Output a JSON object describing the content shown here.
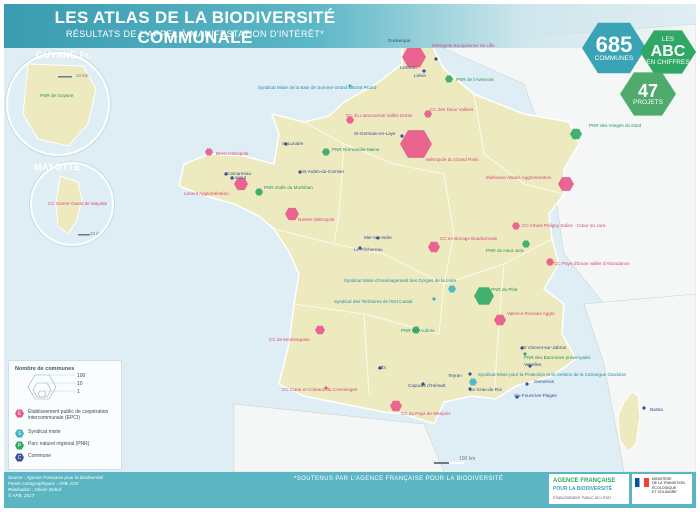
{
  "header": {
    "title": "LES ATLAS DE LA BIODIVERSITÉ COMMUNALE",
    "subtitle": "RÉSULTATS DE L'APPEL À MANIFESTATION D'INTÉRÊT*"
  },
  "stats": {
    "communes_count": "685",
    "communes_label": "COMMUNES",
    "abc_small": "LES",
    "abc_big": "ABC",
    "abc_sub": "EN CHIFFRES",
    "projects_count": "47",
    "projects_label": "PROJETS"
  },
  "insets": {
    "guyane_title": "GUYANE Fr.",
    "guyane_scale": "10 km",
    "guyane_place": "PNR de Guyane",
    "mayotte_title": "MAYOTTE",
    "mayotte_scale": "10 km",
    "mayotte_place": "CC Centre Ouest de Mayotte"
  },
  "places": [
    {
      "id": "p01",
      "name": "Métropole Européenne de Lille",
      "cat": "epci"
    },
    {
      "id": "p02",
      "name": "Dunkerque",
      "cat": "commune"
    },
    {
      "id": "p03",
      "name": "Lestrem",
      "cat": "commune"
    },
    {
      "id": "p04",
      "name": "Liévin",
      "cat": "commune"
    },
    {
      "id": "p05",
      "name": "PNR de l'Avesnois",
      "cat": "pnr"
    },
    {
      "id": "p06",
      "name": "Syndicat Mixte de la Baie de Somme Grand Littoral Picard",
      "cat": "syndicat"
    },
    {
      "id": "p07",
      "name": "CC du Liancourtois Vallée Dorée",
      "cat": "epci"
    },
    {
      "id": "p08",
      "name": "CC des Deux Vallées",
      "cat": "epci"
    },
    {
      "id": "p09",
      "name": "PNR des Vosges du Nord",
      "cat": "pnr"
    },
    {
      "id": "p10",
      "name": "St-Germain-en-Laye",
      "cat": "commune"
    },
    {
      "id": "p11",
      "name": "Métropole du Grand Paris",
      "cat": "epci"
    },
    {
      "id": "p12",
      "name": "St-Lunaire",
      "cat": "commune"
    },
    {
      "id": "p13",
      "name": "PNR Normandie-Maine",
      "cat": "pnr"
    },
    {
      "id": "p14",
      "name": "Brest métropole",
      "cat": "epci"
    },
    {
      "id": "p15",
      "name": "Concarneau",
      "cat": "commune"
    },
    {
      "id": "p16",
      "name": "St-Aubin-du-Cormier",
      "cat": "commune"
    },
    {
      "id": "p17",
      "name": "Lorient Agglomération",
      "cat": "epci"
    },
    {
      "id": "p18",
      "name": "PNR Golfe du Morbihan",
      "cat": "pnr"
    },
    {
      "id": "p19",
      "name": "Mulhouse Alsace Agglomération",
      "cat": "epci"
    },
    {
      "id": "p20",
      "name": "Nantes Métropole",
      "cat": "epci"
    },
    {
      "id": "p21",
      "name": "Mer-sur-Indre",
      "cat": "commune"
    },
    {
      "id": "p22",
      "name": "Le Pêchereau",
      "cat": "commune"
    },
    {
      "id": "p23",
      "name": "CC en Bocage Bourbonnais",
      "cat": "epci"
    },
    {
      "id": "p24",
      "name": "CC Arbois Poligny Salins - Cœur du Jura",
      "cat": "epci"
    },
    {
      "id": "p25",
      "name": "PNR du Haut-Jura",
      "cat": "pnr"
    },
    {
      "id": "p26",
      "name": "CC Pays d'Évian vallée d'Abondance",
      "cat": "epci"
    },
    {
      "id": "p27",
      "name": "Syndicat Mixte d'Aménagement des Gorges de la Loire",
      "cat": "syndicat"
    },
    {
      "id": "p28",
      "name": "Syndicat des Territoires de l'Est Cantal",
      "cat": "syndicat"
    },
    {
      "id": "p29",
      "name": "PNR du Pilat",
      "cat": "pnr"
    },
    {
      "id": "p30",
      "name": "Valence Romans Agglo",
      "cat": "epci"
    },
    {
      "id": "p31",
      "name": "PNR de l'Aubrac",
      "cat": "pnr"
    },
    {
      "id": "p32",
      "name": "CC de Montesquieu",
      "cat": "epci"
    },
    {
      "id": "p33",
      "name": "St Vincent-sur-Jabron",
      "cat": "commune"
    },
    {
      "id": "p34",
      "name": "PNR des Baronnies provençales",
      "cat": "pnr"
    },
    {
      "id": "p35",
      "name": "Venelles",
      "cat": "commune"
    },
    {
      "id": "p36",
      "name": "Albi",
      "cat": "commune"
    },
    {
      "id": "p37",
      "name": "Teyran",
      "cat": "commune"
    },
    {
      "id": "p38",
      "name": "Syndicat Mixte pour la Protection et la Gestion de la Camargue Gardoise",
      "cat": "syndicat"
    },
    {
      "id": "p39",
      "name": "Capoulis d'Hérault",
      "cat": "commune"
    },
    {
      "id": "p40",
      "name": "Le Grau-du-Roi",
      "cat": "commune"
    },
    {
      "id": "p41",
      "name": "Gemenos",
      "cat": "commune"
    },
    {
      "id": "p42",
      "name": "Six-Fours-les-Plages",
      "cat": "commune"
    },
    {
      "id": "p43",
      "name": "CC Cœur et Coteaux du Comminges",
      "cat": "epci"
    },
    {
      "id": "p44",
      "name": "CC du Pays de Mirepoix",
      "cat": "epci"
    },
    {
      "id": "p45",
      "name": "Bastia",
      "cat": "commune"
    },
    {
      "id": "p46",
      "name": "Lorient",
      "cat": "commune"
    }
  ],
  "legend": {
    "title": "Nombre de communes",
    "scale_values": [
      "1",
      "10",
      "100"
    ],
    "items": [
      {
        "code": "E",
        "label": "Établissement public de coopération intercommunale (EPCI)"
      },
      {
        "code": "S",
        "label": "Syndicat mixte"
      },
      {
        "code": "P",
        "label": "Parc naturel régional (PNR)"
      },
      {
        "code": "C",
        "label": "Commune"
      }
    ]
  },
  "scale_bar": "100 km",
  "footer": {
    "credits": [
      "Source : Agence Française pour la biodiversité",
      "Fonds cartographiques : AFB, IGN",
      "Réalisation : Olivier Debuf",
      "© AFB, 2017"
    ],
    "footnote": "*SOUTENUS PAR L'AGENCE FRANÇAISE POUR LA BIODIVERSITÉ",
    "afb_logo_line1": "AGENCE FRANÇAISE",
    "afb_logo_line2": "POUR LA BIODIVERSITÉ",
    "afb_logo_line3": "ÉTABLISSEMENT PUBLIC DE L'ÉTAT",
    "ministry_logo_line1": "MINISTÈRE",
    "ministry_logo_line2": "DE LA TRANSITION",
    "ministry_logo_line3": "ÉCOLOGIQUE",
    "ministry_logo_line4": "ET SOLIDAIRE"
  },
  "colors": {
    "epci": "#e8578b",
    "syndicat": "#3eb3c7",
    "pnr": "#2fa866",
    "commune": "#3a4f9a",
    "land": "#eeeac0",
    "sea": "#dfeef4",
    "header": "#3a9cb0"
  }
}
